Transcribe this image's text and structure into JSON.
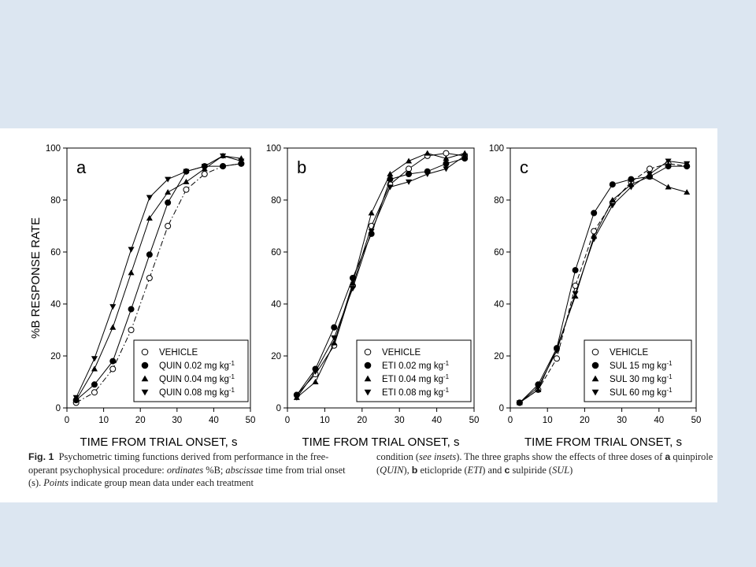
{
  "colors": {
    "background": "#dce6f1",
    "panel": "#ffffff",
    "ink": "#000000"
  },
  "chart_data": [
    {
      "type": "line",
      "panel_letter": "a",
      "xlabel": "TIME FROM TRIAL ONSET, s",
      "ylabel": "%B RESPONSE RATE",
      "xlim": [
        0,
        50
      ],
      "ylim": [
        0,
        100
      ],
      "xticks": [
        0,
        10,
        20,
        30,
        40,
        50
      ],
      "yticks": [
        0,
        20,
        40,
        60,
        80,
        100
      ],
      "legend_position": "bottom-right",
      "x": [
        2.5,
        7.5,
        12.5,
        17.5,
        22.5,
        27.5,
        32.5,
        37.5,
        42.5,
        47.5
      ],
      "series": [
        {
          "name": "VEHICLE",
          "marker": "circle-open",
          "dash": "dashdot",
          "values": [
            2,
            6,
            15,
            30,
            50,
            70,
            84,
            90,
            93,
            94
          ]
        },
        {
          "name_prefix": "QUIN 0.02 mg kg",
          "name_sup": "-1",
          "marker": "circle-filled",
          "dash": "solid",
          "values": [
            3,
            9,
            18,
            38,
            59,
            79,
            91,
            93,
            93,
            94
          ]
        },
        {
          "name_prefix": "QUIN 0.04 mg kg",
          "name_sup": "-1",
          "marker": "triangle-up",
          "dash": "solid",
          "values": [
            3,
            15,
            31,
            52,
            73,
            83,
            87,
            92,
            97,
            96
          ]
        },
        {
          "name_prefix": "QUIN 0.08 mg kg",
          "name_sup": "-1",
          "marker": "triangle-down",
          "dash": "solid",
          "values": [
            4,
            19,
            39,
            61,
            81,
            88,
            91,
            93,
            97,
            95
          ]
        }
      ]
    },
    {
      "type": "line",
      "panel_letter": "b",
      "xlabel": "TIME FROM TRIAL ONSET, s",
      "xlim": [
        0,
        50
      ],
      "ylim": [
        0,
        100
      ],
      "xticks": [
        0,
        10,
        20,
        30,
        40,
        50
      ],
      "yticks": [
        0,
        20,
        40,
        60,
        80,
        100
      ],
      "legend_position": "bottom-right",
      "x": [
        2.5,
        7.5,
        12.5,
        17.5,
        22.5,
        27.5,
        32.5,
        37.5,
        42.5,
        47.5
      ],
      "series": [
        {
          "name": "VEHICLE",
          "marker": "circle-open",
          "dash": "solid",
          "values": [
            5,
            13,
            24,
            47,
            70,
            86,
            92,
            97,
            98,
            97
          ]
        },
        {
          "name_prefix": "ETI 0.02 mg kg",
          "name_sup": "-1",
          "marker": "circle-filled",
          "dash": "solid",
          "values": [
            5,
            15,
            31,
            50,
            67,
            88,
            90,
            91,
            94,
            96
          ]
        },
        {
          "name_prefix": "ETI 0.04 mg kg",
          "name_sup": "-1",
          "marker": "triangle-up",
          "dash": "solid",
          "values": [
            4,
            10,
            25,
            48,
            75,
            90,
            95,
            98,
            96,
            98
          ]
        },
        {
          "name_prefix": "ETI 0.08 mg kg",
          "name_sup": "-1",
          "marker": "triangle-down",
          "dash": "solid",
          "values": [
            4,
            14,
            27,
            46,
            68,
            85,
            87,
            90,
            92,
            97
          ]
        }
      ]
    },
    {
      "type": "line",
      "panel_letter": "c",
      "xlabel": "TIME FROM TRIAL ONSET, s",
      "xlim": [
        0,
        50
      ],
      "ylim": [
        0,
        100
      ],
      "xticks": [
        0,
        10,
        20,
        30,
        40,
        50
      ],
      "yticks": [
        0,
        20,
        40,
        60,
        80,
        100
      ],
      "legend_position": "bottom-right",
      "x": [
        2.5,
        7.5,
        12.5,
        17.5,
        22.5,
        27.5,
        32.5,
        37.5,
        42.5,
        47.5
      ],
      "series": [
        {
          "name": "VEHICLE",
          "marker": "circle-open",
          "dash": "dashed",
          "values": [
            2,
            7,
            19,
            47,
            68,
            79,
            87,
            92,
            94,
            93
          ]
        },
        {
          "name_prefix": "SUL 15 mg kg",
          "name_sup": "-1",
          "marker": "circle-filled",
          "dash": "solid",
          "values": [
            2,
            9,
            23,
            53,
            75,
            86,
            88,
            89,
            93,
            93
          ]
        },
        {
          "name_prefix": "SUL 30 mg kg",
          "name_sup": "-1",
          "marker": "triangle-up",
          "dash": "solid",
          "values": [
            2,
            7,
            23,
            43,
            66,
            80,
            86,
            89,
            85,
            83
          ]
        },
        {
          "name_prefix": "SUL 60 mg kg",
          "name_sup": "-1",
          "marker": "triangle-down",
          "dash": "solid",
          "values": [
            2,
            8,
            22,
            44,
            65,
            78,
            85,
            90,
            95,
            94
          ]
        }
      ]
    }
  ],
  "caption": {
    "fig_label": "Fig. 1",
    "text_1": "Psychometric timing functions derived from performance in the free-operant psychophysical procedure: ",
    "ordinates": "ordinates",
    "text_2": " %B; ",
    "abscissae": "abscissae",
    "text_3": " time from trial onset (s). ",
    "points": "Points",
    "text_4": " indicate group mean data under each treatment condition (",
    "see_insets": "see insets",
    "text_5": "). The three graphs show the effects of three doses of ",
    "a": "a",
    "text_6": " quinpirole (",
    "quin": "QUIN",
    "text_7": "), ",
    "b": "b",
    "text_8": " eticlopride (",
    "eti": "ETI",
    "text_9": ") and ",
    "c": "c",
    "text_10": " sulpiride (",
    "sul": "SUL",
    "text_11": ")"
  }
}
